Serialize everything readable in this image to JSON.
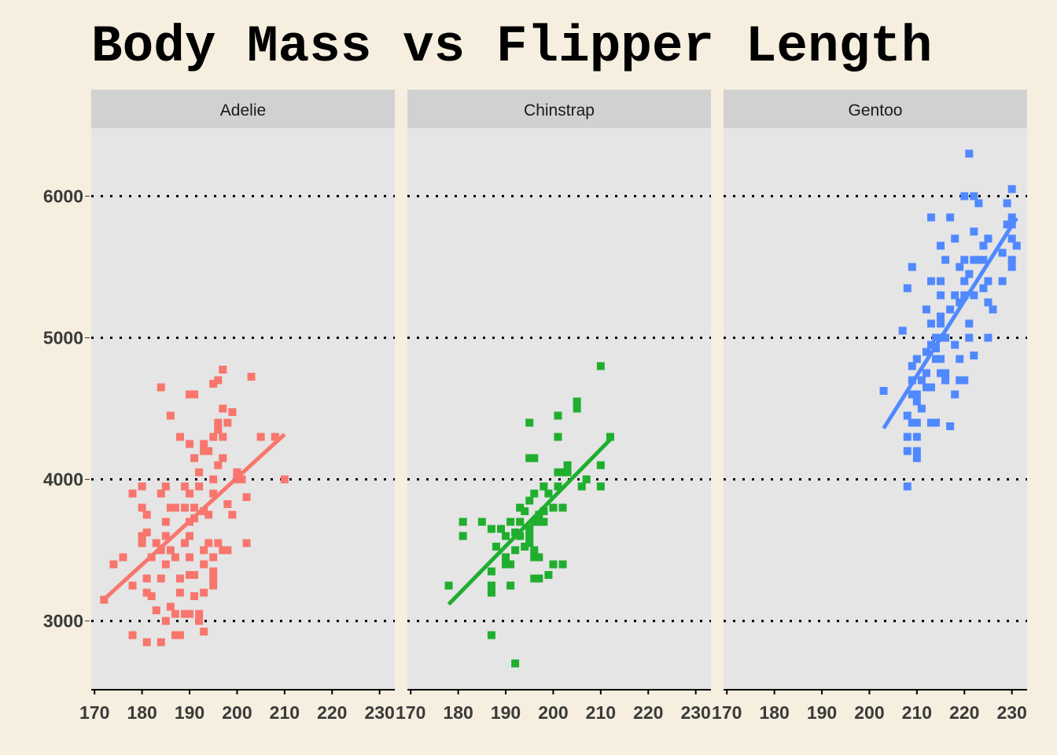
{
  "chart_data": {
    "type": "scatter",
    "title": "Body Mass vs Flipper Length",
    "xlabel": "",
    "ylabel": "",
    "xlim": [
      169.3,
      233.2
    ],
    "ylim": [
      2520,
      6480
    ],
    "x_ticks": [
      "170",
      "180",
      "190",
      "200",
      "210",
      "220",
      "230"
    ],
    "x_tick_values": [
      170,
      180,
      190,
      200,
      210,
      220,
      230
    ],
    "y_ticks": [
      "3000",
      "4000",
      "5000",
      "6000"
    ],
    "y_tick_values": [
      3000,
      4000,
      5000,
      6000
    ],
    "grid": "major y dotted",
    "trend": "linear regression per facet",
    "facets": [
      {
        "name": "Adelie",
        "color": "#f8766d",
        "points": [
          [
            172,
            3150
          ],
          [
            174,
            3400
          ],
          [
            176,
            3450
          ],
          [
            178,
            3250
          ],
          [
            178,
            3900
          ],
          [
            178,
            2900
          ],
          [
            180,
            3800
          ],
          [
            180,
            3950
          ],
          [
            180,
            3550
          ],
          [
            180,
            3600
          ],
          [
            181,
            3625
          ],
          [
            181,
            3750
          ],
          [
            181,
            3300
          ],
          [
            181,
            3200
          ],
          [
            181,
            2850
          ],
          [
            182,
            3175
          ],
          [
            182,
            3450
          ],
          [
            183,
            3075
          ],
          [
            183,
            3550
          ],
          [
            184,
            4650
          ],
          [
            184,
            3900
          ],
          [
            184,
            3300
          ],
          [
            184,
            3500
          ],
          [
            184,
            2850
          ],
          [
            185,
            3700
          ],
          [
            185,
            3950
          ],
          [
            185,
            3000
          ],
          [
            185,
            3400
          ],
          [
            185,
            3600
          ],
          [
            186,
            4450
          ],
          [
            186,
            3100
          ],
          [
            186,
            3500
          ],
          [
            186,
            3800
          ],
          [
            187,
            3050
          ],
          [
            187,
            3800
          ],
          [
            187,
            3450
          ],
          [
            187,
            2900
          ],
          [
            188,
            4300
          ],
          [
            188,
            3200
          ],
          [
            188,
            3300
          ],
          [
            188,
            2900
          ],
          [
            189,
            3800
          ],
          [
            189,
            3550
          ],
          [
            189,
            3950
          ],
          [
            189,
            3050
          ],
          [
            190,
            4600
          ],
          [
            190,
            4250
          ],
          [
            190,
            3900
          ],
          [
            190,
            3700
          ],
          [
            190,
            3600
          ],
          [
            190,
            3450
          ],
          [
            190,
            3050
          ],
          [
            190,
            3325
          ],
          [
            191,
            4600
          ],
          [
            191,
            3800
          ],
          [
            191,
            4150
          ],
          [
            191,
            3175
          ],
          [
            191,
            3325
          ],
          [
            191,
            3725
          ],
          [
            192,
            3950
          ],
          [
            192,
            4050
          ],
          [
            192,
            3000
          ],
          [
            192,
            3050
          ],
          [
            193,
            4200
          ],
          [
            193,
            4250
          ],
          [
            193,
            3775
          ],
          [
            193,
            3500
          ],
          [
            193,
            3400
          ],
          [
            193,
            2925
          ],
          [
            193,
            3200
          ],
          [
            194,
            4200
          ],
          [
            194,
            3750
          ],
          [
            194,
            3550
          ],
          [
            195,
            4675
          ],
          [
            195,
            4300
          ],
          [
            195,
            3900
          ],
          [
            195,
            3300
          ],
          [
            195,
            3250
          ],
          [
            195,
            3350
          ],
          [
            195,
            3450
          ],
          [
            195,
            4000
          ],
          [
            196,
            4700
          ],
          [
            196,
            4400
          ],
          [
            196,
            4100
          ],
          [
            196,
            3550
          ],
          [
            196,
            4350
          ],
          [
            197,
            4775
          ],
          [
            197,
            4500
          ],
          [
            197,
            4150
          ],
          [
            197,
            3500
          ],
          [
            197,
            4300
          ],
          [
            198,
            4400
          ],
          [
            198,
            3825
          ],
          [
            198,
            3500
          ],
          [
            199,
            4475
          ],
          [
            199,
            3750
          ],
          [
            200,
            4050
          ],
          [
            200,
            4000
          ],
          [
            201,
            4000
          ],
          [
            202,
            3875
          ],
          [
            202,
            3550
          ],
          [
            203,
            4725
          ],
          [
            205,
            4300
          ],
          [
            208,
            4300
          ],
          [
            210,
            4000
          ]
        ]
      },
      {
        "name": "Chinstrap",
        "color": "#1fae2e",
        "points": [
          [
            178,
            3250
          ],
          [
            181,
            3700
          ],
          [
            181,
            3600
          ],
          [
            185,
            3700
          ],
          [
            187,
            3650
          ],
          [
            187,
            3350
          ],
          [
            187,
            3250
          ],
          [
            187,
            3200
          ],
          [
            187,
            2900
          ],
          [
            188,
            3525
          ],
          [
            189,
            3650
          ],
          [
            190,
            3600
          ],
          [
            190,
            3450
          ],
          [
            190,
            3400
          ],
          [
            191,
            3700
          ],
          [
            191,
            3400
          ],
          [
            191,
            3250
          ],
          [
            192,
            2700
          ],
          [
            192,
            3500
          ],
          [
            192,
            3625
          ],
          [
            193,
            3800
          ],
          [
            193,
            3700
          ],
          [
            193,
            3600
          ],
          [
            194,
            3775
          ],
          [
            194,
            3525
          ],
          [
            195,
            4400
          ],
          [
            195,
            4150
          ],
          [
            195,
            3850
          ],
          [
            195,
            3650
          ],
          [
            195,
            3550
          ],
          [
            195,
            3600
          ],
          [
            196,
            4150
          ],
          [
            196,
            3900
          ],
          [
            196,
            3700
          ],
          [
            196,
            3500
          ],
          [
            196,
            3450
          ],
          [
            196,
            3300
          ],
          [
            197,
            3750
          ],
          [
            197,
            3700
          ],
          [
            197,
            3450
          ],
          [
            197,
            3300
          ],
          [
            198,
            3950
          ],
          [
            198,
            3775
          ],
          [
            198,
            3700
          ],
          [
            199,
            3900
          ],
          [
            199,
            3325
          ],
          [
            200,
            3800
          ],
          [
            200,
            3400
          ],
          [
            201,
            4450
          ],
          [
            201,
            4300
          ],
          [
            201,
            4050
          ],
          [
            201,
            3950
          ],
          [
            202,
            4050
          ],
          [
            202,
            3800
          ],
          [
            202,
            3400
          ],
          [
            203,
            4100
          ],
          [
            203,
            4050
          ],
          [
            205,
            4550
          ],
          [
            205,
            4500
          ],
          [
            206,
            3950
          ],
          [
            207,
            4000
          ],
          [
            210,
            4800
          ],
          [
            210,
            4100
          ],
          [
            210,
            3950
          ],
          [
            212,
            4300
          ]
        ]
      },
      {
        "name": "Gentoo",
        "color": "#5088ff",
        "points": [
          [
            203,
            4625
          ],
          [
            207,
            5050
          ],
          [
            208,
            5350
          ],
          [
            208,
            4450
          ],
          [
            208,
            4300
          ],
          [
            208,
            4200
          ],
          [
            208,
            3950
          ],
          [
            209,
            5500
          ],
          [
            209,
            4800
          ],
          [
            209,
            4700
          ],
          [
            209,
            4600
          ],
          [
            209,
            4400
          ],
          [
            210,
            4850
          ],
          [
            210,
            4600
          ],
          [
            210,
            4550
          ],
          [
            210,
            4400
          ],
          [
            210,
            4300
          ],
          [
            210,
            4200
          ],
          [
            210,
            4150
          ],
          [
            211,
            4700
          ],
          [
            211,
            4500
          ],
          [
            212,
            5200
          ],
          [
            212,
            4900
          ],
          [
            212,
            4750
          ],
          [
            212,
            4650
          ],
          [
            213,
            5850
          ],
          [
            213,
            5400
          ],
          [
            213,
            5100
          ],
          [
            213,
            4950
          ],
          [
            213,
            4650
          ],
          [
            213,
            4400
          ],
          [
            214,
            5000
          ],
          [
            214,
            4850
          ],
          [
            214,
            4925
          ],
          [
            214,
            4400
          ],
          [
            215,
            5650
          ],
          [
            215,
            5400
          ],
          [
            215,
            5300
          ],
          [
            215,
            5150
          ],
          [
            215,
            5100
          ],
          [
            215,
            5000
          ],
          [
            215,
            4850
          ],
          [
            215,
            4750
          ],
          [
            216,
            5550
          ],
          [
            216,
            5000
          ],
          [
            216,
            4700
          ],
          [
            216,
            4750
          ],
          [
            217,
            5850
          ],
          [
            217,
            5200
          ],
          [
            217,
            4375
          ],
          [
            218,
            5700
          ],
          [
            218,
            5300
          ],
          [
            218,
            4950
          ],
          [
            218,
            4600
          ],
          [
            219,
            5500
          ],
          [
            219,
            5250
          ],
          [
            219,
            4850
          ],
          [
            219,
            4700
          ],
          [
            220,
            6000
          ],
          [
            220,
            5400
          ],
          [
            220,
            5300
          ],
          [
            220,
            5550
          ],
          [
            220,
            4700
          ],
          [
            221,
            6300
          ],
          [
            221,
            5450
          ],
          [
            221,
            5100
          ],
          [
            221,
            5000
          ],
          [
            222,
            6000
          ],
          [
            222,
            5750
          ],
          [
            222,
            5550
          ],
          [
            222,
            5300
          ],
          [
            222,
            4875
          ],
          [
            223,
            5950
          ],
          [
            223,
            5550
          ],
          [
            224,
            5650
          ],
          [
            224,
            5350
          ],
          [
            224,
            5550
          ],
          [
            225,
            5700
          ],
          [
            225,
            5400
          ],
          [
            225,
            5250
          ],
          [
            225,
            5000
          ],
          [
            226,
            5200
          ],
          [
            228,
            5600
          ],
          [
            228,
            5400
          ],
          [
            229,
            5950
          ],
          [
            229,
            5800
          ],
          [
            230,
            6050
          ],
          [
            230,
            5850
          ],
          [
            230,
            5800
          ],
          [
            230,
            5700
          ],
          [
            230,
            5550
          ],
          [
            230,
            5500
          ],
          [
            231,
            5650
          ]
        ]
      }
    ]
  }
}
